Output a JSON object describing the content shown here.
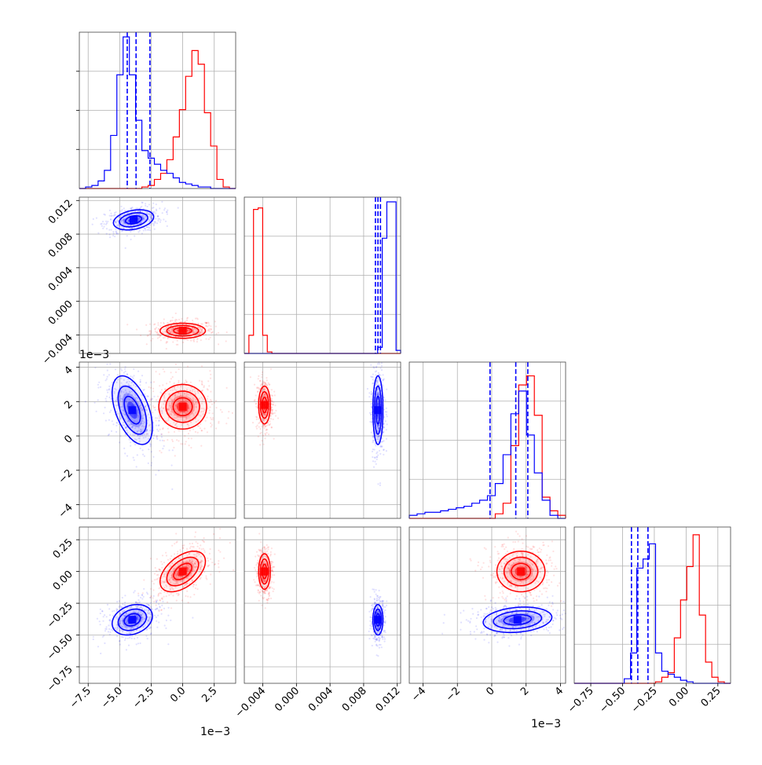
{
  "colors": {
    "series_a": "#0000ff",
    "series_b": "#ff0000",
    "grid": "#b0b0b0"
  },
  "chart_data": {
    "type": "corner",
    "grid": true,
    "variables": [
      {
        "id": "p1",
        "range": [
          -8.2,
          4.2
        ],
        "ticks": [
          -7.5,
          -5.0,
          -2.5,
          0.0,
          2.5
        ],
        "tick_labels": [
          "−7.5",
          "−5.0",
          "−2.5",
          "0.0",
          "2.5"
        ],
        "offset": "1e−3",
        "quantiles_a": [
          -4.4,
          -3.7,
          -2.6
        ],
        "hist_a": [
          0,
          0.01,
          0.02,
          0.05,
          0.12,
          0.35,
          0.75,
          1.0,
          0.75,
          0.45,
          0.25,
          0.2,
          0.16,
          0.12,
          0.1,
          0.07,
          0.04,
          0.03,
          0.02,
          0.01,
          0.01,
          0,
          0,
          0,
          0
        ],
        "hist_b": [
          0,
          0,
          0,
          0,
          0,
          0,
          0,
          0,
          0,
          0,
          0.01,
          0.02,
          0.06,
          0.1,
          0.19,
          0.34,
          0.52,
          0.74,
          0.91,
          0.82,
          0.5,
          0.28,
          0.06,
          0.01,
          0
        ]
      },
      {
        "id": "p2",
        "range": [
          -0.0062,
          0.0124
        ],
        "ticks": [
          -0.004,
          0.0,
          0.004,
          0.008,
          0.012
        ],
        "tick_labels": [
          "−0.004",
          "0.000",
          "0.004",
          "0.008",
          "0.012"
        ],
        "quantiles_a": [
          0.0094,
          0.0097,
          0.01
        ],
        "hist_a": [
          0,
          0,
          0,
          0,
          0,
          0,
          0,
          0,
          0,
          0,
          0,
          0,
          0,
          0,
          0,
          0,
          0,
          0,
          0,
          0,
          0,
          0,
          0,
          0,
          0,
          0,
          0,
          0,
          0,
          0.04,
          0.76,
          1.0,
          1.0,
          0.02
        ],
        "hist_b": [
          0,
          0.12,
          0.95,
          0.96,
          0.12,
          0.01,
          0,
          0,
          0,
          0,
          0,
          0,
          0,
          0,
          0,
          0,
          0,
          0,
          0,
          0,
          0,
          0,
          0,
          0,
          0,
          0,
          0,
          0,
          0,
          0,
          0,
          0,
          0,
          0
        ]
      },
      {
        "id": "p3",
        "range": [
          -4.8,
          4.3
        ],
        "ticks": [
          -4,
          -2,
          0,
          2,
          4
        ],
        "tick_labels": [
          "−4",
          "−2",
          "0",
          "2",
          "4"
        ],
        "offset": "1e−3",
        "quantiles_a": [
          -0.1,
          1.4,
          2.1
        ],
        "hist_a": [
          0.02,
          0.03,
          0.04,
          0.04,
          0.05,
          0.06,
          0.07,
          0.08,
          0.1,
          0.12,
          0.15,
          0.23,
          0.42,
          0.69,
          0.84,
          0.55,
          0.3,
          0.12,
          0.02,
          0.0
        ],
        "hist_b": [
          0,
          0,
          0,
          0,
          0,
          0,
          0,
          0,
          0,
          0,
          0,
          0.03,
          0.1,
          0.48,
          0.88,
          0.94,
          0.68,
          0.14,
          0.05,
          0.02
        ]
      },
      {
        "id": "p4",
        "range": [
          -0.88,
          0.35
        ],
        "ticks": [
          -0.75,
          -0.5,
          -0.25,
          0.0,
          0.25
        ],
        "tick_labels": [
          "−0.75",
          "−0.50",
          "−0.25",
          "0.00",
          "0.25"
        ],
        "quantiles_a": [
          -0.43,
          -0.38,
          -0.3
        ],
        "hist_a": [
          0,
          0,
          0,
          0,
          0,
          0,
          0,
          0,
          0.03,
          0.2,
          0.76,
          0.82,
          0.92,
          0.2,
          0.08,
          0.06,
          0.04,
          0.02,
          0.01,
          0,
          0,
          0,
          0,
          0,
          0
        ],
        "hist_b": [
          0,
          0,
          0,
          0,
          0,
          0,
          0,
          0,
          0,
          0,
          0,
          0,
          0,
          0.01,
          0.04,
          0.07,
          0.3,
          0.55,
          0.77,
          0.98,
          0.45,
          0.14,
          0.04,
          0.01,
          0
        ]
      }
    ],
    "y_tick_labels_row2": [
      "−0.004",
      "0.000",
      "0.004",
      "0.008",
      "0.012"
    ],
    "y_ticks_row2": [
      -0.004,
      0.0,
      0.004,
      0.008,
      0.012
    ],
    "y_tick_labels_row3": [
      "−4",
      "−2",
      "0",
      "2",
      "4"
    ],
    "y_ticks_row3": [
      -4,
      -2,
      0,
      2,
      4
    ],
    "y_tick_labels_row4": [
      "−0.75",
      "−0.50",
      "−0.25",
      "0.00",
      "0.25"
    ],
    "y_ticks_row4": [
      -0.75,
      -0.5,
      -0.25,
      0.0,
      0.25
    ],
    "offset_label": "1e−3",
    "clusters": {
      "p1_p2": {
        "a": {
          "cx": -3.9,
          "cy": 0.0097,
          "sx": 0.8,
          "sy": 0.0006,
          "r": 0.3
        },
        "b": {
          "cx": 0.0,
          "cy": -0.0035,
          "sx": 0.9,
          "sy": 0.00045,
          "r": 0.0
        }
      },
      "p1_p3": {
        "a": {
          "cx": -4.0,
          "cy": 1.5,
          "sx": 0.8,
          "sy": 1.0,
          "r": -0.5
        },
        "b": {
          "cx": 0.0,
          "cy": 1.7,
          "sx": 0.95,
          "sy": 0.65,
          "r": 0.0
        }
      },
      "p2_p3": {
        "a": {
          "cx": 0.0097,
          "cy": 1.5,
          "sx": 0.0003,
          "sy": 1.0,
          "r": 0.0
        },
        "b": {
          "cx": -0.0038,
          "cy": 1.8,
          "sx": 0.00035,
          "sy": 0.55,
          "r": 0.0
        }
      },
      "p1_p4": {
        "a": {
          "cx": -4.0,
          "cy": -0.38,
          "sx": 0.8,
          "sy": 0.06,
          "r": 0.25
        },
        "b": {
          "cx": 0.0,
          "cy": 0.0,
          "sx": 0.9,
          "sy": 0.08,
          "r": 0.5
        }
      },
      "p2_p4": {
        "a": {
          "cx": 0.0097,
          "cy": -0.38,
          "sx": 0.0003,
          "sy": 0.06,
          "r": 0.0
        },
        "b": {
          "cx": -0.0038,
          "cy": 0.0,
          "sx": 0.00035,
          "sy": 0.07,
          "r": 0.0
        }
      },
      "p3_p4": {
        "a": {
          "cx": 1.5,
          "cy": -0.38,
          "sx": 1.0,
          "sy": 0.05,
          "r": 0.2
        },
        "b": {
          "cx": 1.7,
          "cy": 0.0,
          "sx": 0.7,
          "sy": 0.08,
          "r": 0.0
        }
      }
    }
  }
}
